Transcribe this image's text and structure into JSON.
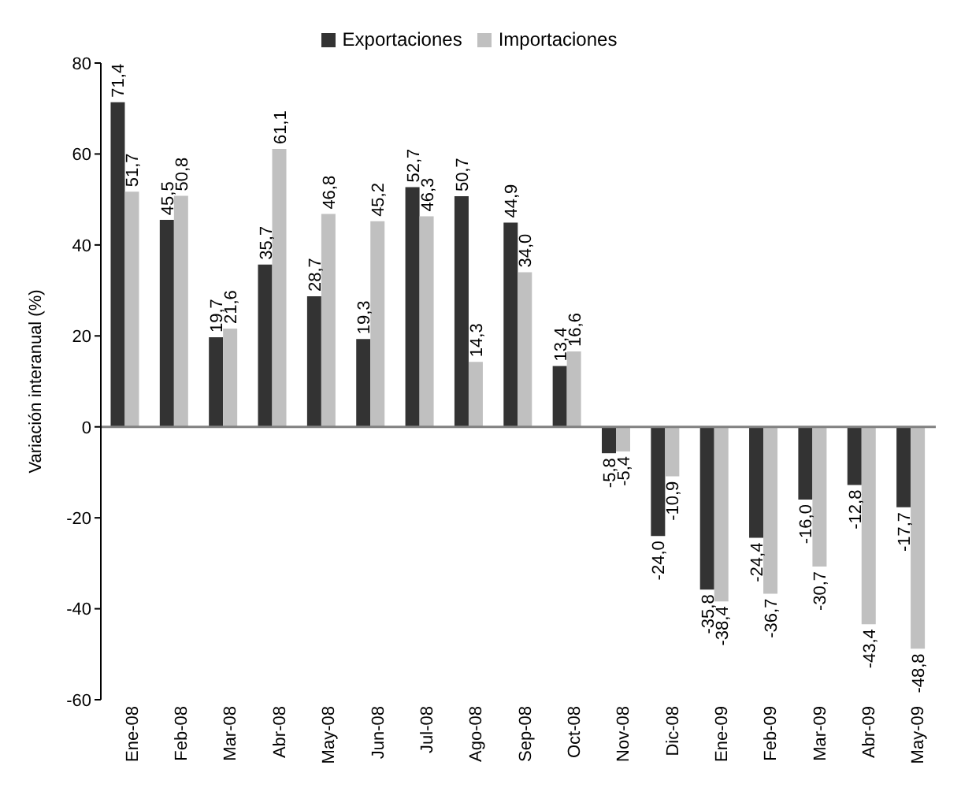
{
  "chart_data": {
    "type": "bar",
    "ylabel": "Variación interanual (%)",
    "categories": [
      "Ene-08",
      "Feb-08",
      "Mar-08",
      "Abr-08",
      "May-08",
      "Jun-08",
      "Jul-08",
      "Ago-08",
      "Sep-08",
      "Oct-08",
      "Nov-08",
      "Dic-08",
      "Ene-09",
      "Feb-09",
      "Mar-09",
      "Abr-09",
      "May-09"
    ],
    "series": [
      {
        "name": "Exportaciones",
        "color": "#333333",
        "values": [
          71.4,
          45.5,
          19.7,
          35.7,
          28.7,
          19.3,
          52.7,
          50.7,
          44.9,
          13.4,
          -5.8,
          -24.0,
          -35.8,
          -24.4,
          -16.0,
          -12.8,
          -17.7
        ],
        "value_labels": [
          "71,4",
          "45,5",
          "19,7",
          "35,7",
          "28,7",
          "19,3",
          "52,7",
          "50,7",
          "44,9",
          "13,4",
          "-5,8",
          "-24,0",
          "-35,8",
          "-24,4",
          "-16,0",
          "-12,8",
          "-17,7"
        ]
      },
      {
        "name": "Importaciones",
        "color": "#c0c0c0",
        "values": [
          51.7,
          50.8,
          21.6,
          61.1,
          46.8,
          45.2,
          46.3,
          14.3,
          34.0,
          16.6,
          -5.4,
          -10.9,
          -38.4,
          -36.7,
          -30.7,
          -43.4,
          -48.8
        ],
        "value_labels": [
          "51,7",
          "50,8",
          "21,6",
          "61,1",
          "46,8",
          "45,2",
          "46,3",
          "14,3",
          "34,0",
          "16,6",
          "-5,4",
          "-10,9",
          "-38,4",
          "-36,7",
          "-30,7",
          "-43,4",
          "-48,8"
        ]
      }
    ],
    "ylim": [
      -60,
      80
    ],
    "yticks": [
      -60,
      -40,
      -20,
      0,
      20,
      40,
      60,
      80
    ],
    "legend": "top"
  }
}
